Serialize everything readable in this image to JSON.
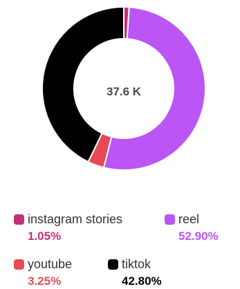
{
  "chart_data": {
    "type": "pie",
    "variant": "donut",
    "center_label": "37.6 K",
    "series": [
      {
        "name": "instagram stories",
        "value": 1.05,
        "value_label": "1.05%",
        "color": "#c2307a"
      },
      {
        "name": "reel",
        "value": 52.9,
        "value_label": "52.90%",
        "color": "#bb55f5"
      },
      {
        "name": "youtube",
        "value": 3.25,
        "value_label": "3.25%",
        "color": "#e84a55"
      },
      {
        "name": "tiktok",
        "value": 42.8,
        "value_label": "42.80%",
        "color": "#000000"
      }
    ],
    "legend_position": "bottom"
  }
}
